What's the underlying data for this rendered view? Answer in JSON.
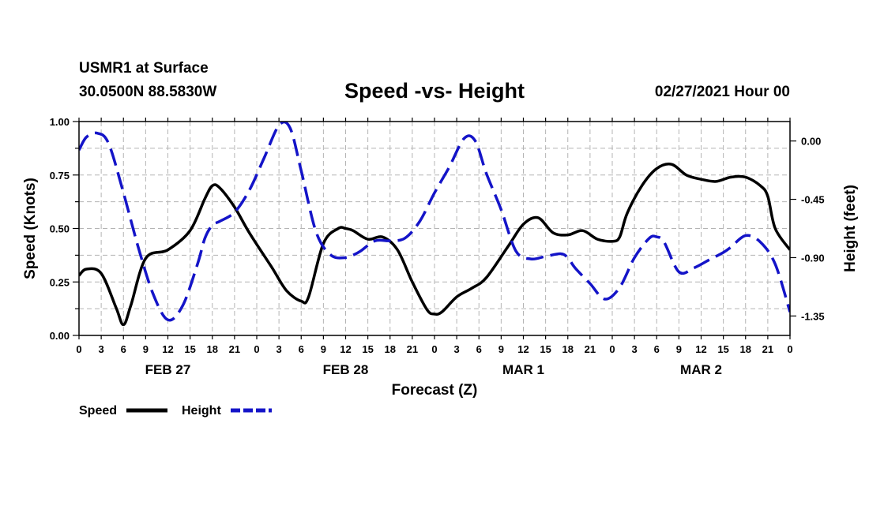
{
  "header": {
    "station": "USMR1 at Surface",
    "coords": "30.0500N 88.5830W",
    "datetime": "02/27/2021 Hour 00"
  },
  "colors": {
    "speed": "#000000",
    "height": "#1414c8",
    "grid": "#b4b4b4"
  },
  "chart_data": {
    "type": "line",
    "title": "Speed -vs- Height",
    "xlabel": "Forecast (Z)",
    "ylabel": "Speed (Knots)",
    "y2label": "Height (feet)",
    "xlim": [
      0,
      96
    ],
    "ylim": [
      0,
      1.0
    ],
    "y2lim": [
      -1.5,
      0.15
    ],
    "y_ticks": [
      "0.00",
      "0.25",
      "0.50",
      "0.75",
      "1.00"
    ],
    "y2_ticks": [
      "0.00",
      "-0.45",
      "-0.90",
      "-1.35"
    ],
    "x_tick_labels": [
      "0",
      "3",
      "6",
      "9",
      "12",
      "15",
      "18",
      "21",
      "0",
      "3",
      "6",
      "9",
      "12",
      "15",
      "18",
      "21",
      "0",
      "3",
      "6",
      "9",
      "12",
      "15",
      "18",
      "21",
      "0",
      "3",
      "6",
      "9",
      "12",
      "15",
      "18",
      "21",
      "0"
    ],
    "date_labels": [
      {
        "label": "FEB 27",
        "hour": 12
      },
      {
        "label": "FEB 28",
        "hour": 36
      },
      {
        "label": "MAR 1",
        "hour": 60
      },
      {
        "label": "MAR 2",
        "hour": 84
      }
    ],
    "grid": true,
    "legend": [
      {
        "name": "Speed",
        "style": "solid"
      },
      {
        "name": "Height",
        "style": "dashed"
      }
    ],
    "series": [
      {
        "name": "Speed",
        "axis": "left",
        "x": [
          0,
          1,
          3,
          5,
          6,
          7,
          9,
          12,
          15,
          17,
          18,
          19,
          21,
          23,
          26,
          28,
          30,
          31,
          33,
          35,
          36,
          37,
          39,
          41,
          43,
          45,
          47,
          48,
          49,
          51,
          53,
          55,
          58,
          60,
          62,
          64,
          66,
          68,
          70,
          72,
          73,
          74,
          76,
          78,
          80,
          82,
          84,
          86,
          88,
          90,
          92,
          93,
          94,
          96
        ],
        "y": [
          0.28,
          0.31,
          0.29,
          0.13,
          0.05,
          0.14,
          0.36,
          0.4,
          0.49,
          0.64,
          0.7,
          0.69,
          0.6,
          0.48,
          0.32,
          0.21,
          0.16,
          0.18,
          0.43,
          0.5,
          0.5,
          0.49,
          0.45,
          0.46,
          0.4,
          0.25,
          0.12,
          0.1,
          0.11,
          0.18,
          0.22,
          0.27,
          0.42,
          0.52,
          0.55,
          0.48,
          0.47,
          0.49,
          0.45,
          0.44,
          0.46,
          0.57,
          0.7,
          0.78,
          0.8,
          0.75,
          0.73,
          0.72,
          0.74,
          0.74,
          0.7,
          0.65,
          0.5,
          0.4
        ]
      },
      {
        "name": "Height",
        "axis": "right",
        "x": [
          0,
          1,
          2.5,
          4,
          6,
          8,
          10,
          12,
          14,
          16,
          17,
          18,
          19,
          21,
          23,
          25,
          27,
          28.5,
          30,
          32,
          34,
          36,
          37,
          38,
          40,
          42,
          44,
          46,
          48,
          50,
          52,
          53.5,
          55,
          57,
          59,
          61,
          63,
          65,
          66,
          67,
          69,
          71,
          73,
          75,
          77,
          78,
          79,
          81,
          83,
          85,
          87,
          88,
          90,
          92,
          94,
          96
        ],
        "y": [
          -0.07,
          0.03,
          0.06,
          -0.02,
          -0.4,
          -0.82,
          -1.18,
          -1.38,
          -1.27,
          -0.95,
          -0.75,
          -0.65,
          -0.62,
          -0.55,
          -0.38,
          -0.13,
          0.12,
          0.1,
          -0.23,
          -0.7,
          -0.88,
          -0.9,
          -0.88,
          -0.85,
          -0.77,
          -0.77,
          -0.75,
          -0.62,
          -0.4,
          -0.2,
          0.02,
          0.0,
          -0.25,
          -0.53,
          -0.85,
          -0.91,
          -0.89,
          -0.87,
          -0.9,
          -0.98,
          -1.1,
          -1.22,
          -1.13,
          -0.9,
          -0.75,
          -0.74,
          -0.78,
          -1.01,
          -0.98,
          -0.92,
          -0.86,
          -0.82,
          -0.73,
          -0.78,
          -0.95,
          -1.32
        ]
      }
    ]
  }
}
